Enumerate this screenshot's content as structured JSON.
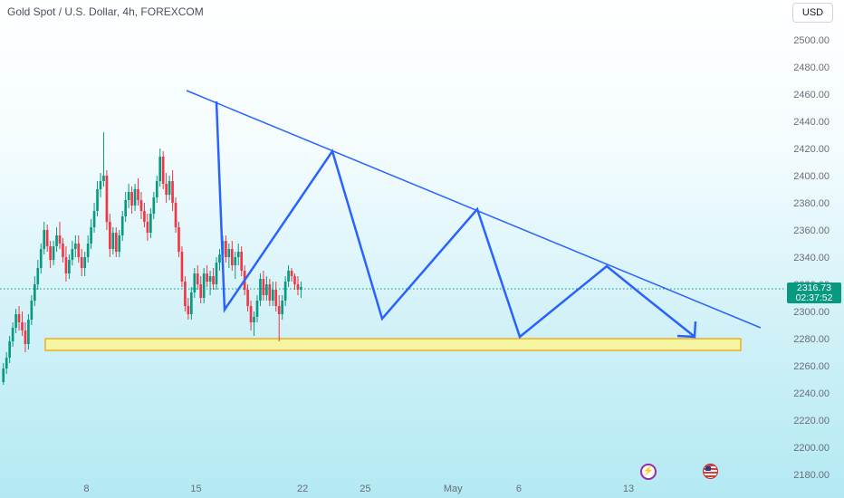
{
  "header": {
    "title": "Gold Spot / U.S. Dollar, 4h, FOREXCOM",
    "currency_button": "USD"
  },
  "price_tag": {
    "price": "2316.73",
    "countdown": "02:37:52"
  },
  "colors": {
    "up_candle": "#089981",
    "down_candle": "#f23645",
    "trendline": "#2962ff",
    "support_zone_fill": "#f3f5a3",
    "support_zone_border": "#f5a400"
  },
  "chart_data": {
    "type": "candlestick",
    "instrument": "Gold Spot / U.S. Dollar",
    "timeframe": "4h",
    "source": "FOREXCOM",
    "y_ticks": [
      2500,
      2480,
      2460,
      2440,
      2420,
      2400,
      2380,
      2360,
      2340,
      2320,
      2300,
      2280,
      2260,
      2240,
      2220,
      2200,
      2180
    ],
    "ylim": [
      2175,
      2510
    ],
    "x_ticks": [
      {
        "label": "8",
        "bar": 27
      },
      {
        "label": "15",
        "bar": 62
      },
      {
        "label": "22",
        "bar": 96
      },
      {
        "label": "25",
        "bar": 116
      },
      {
        "label": "May",
        "bar": 144
      },
      {
        "label": "6",
        "bar": 165
      },
      {
        "label": "13",
        "bar": 200
      }
    ],
    "last_price": 2316.73,
    "candles": [
      [
        2248,
        2262,
        2246,
        2258
      ],
      [
        2258,
        2270,
        2254,
        2266
      ],
      [
        2266,
        2282,
        2262,
        2278
      ],
      [
        2278,
        2292,
        2274,
        2288
      ],
      [
        2288,
        2302,
        2284,
        2298
      ],
      [
        2298,
        2304,
        2286,
        2292
      ],
      [
        2292,
        2300,
        2282,
        2286
      ],
      [
        2286,
        2292,
        2270,
        2276
      ],
      [
        2276,
        2298,
        2272,
        2294
      ],
      [
        2294,
        2312,
        2290,
        2308
      ],
      [
        2308,
        2326,
        2304,
        2320
      ],
      [
        2320,
        2338,
        2316,
        2332
      ],
      [
        2332,
        2350,
        2328,
        2346
      ],
      [
        2346,
        2366,
        2342,
        2360
      ],
      [
        2360,
        2364,
        2344,
        2348
      ],
      [
        2348,
        2352,
        2332,
        2338
      ],
      [
        2338,
        2352,
        2334,
        2348
      ],
      [
        2348,
        2362,
        2344,
        2356
      ],
      [
        2356,
        2366,
        2346,
        2350
      ],
      [
        2350,
        2354,
        2336,
        2340
      ],
      [
        2340,
        2348,
        2322,
        2328
      ],
      [
        2328,
        2342,
        2324,
        2338
      ],
      [
        2338,
        2352,
        2334,
        2346
      ],
      [
        2346,
        2356,
        2340,
        2350
      ],
      [
        2350,
        2356,
        2336,
        2340
      ],
      [
        2340,
        2346,
        2326,
        2332
      ],
      [
        2332,
        2344,
        2326,
        2340
      ],
      [
        2340,
        2356,
        2336,
        2350
      ],
      [
        2350,
        2368,
        2346,
        2362
      ],
      [
        2362,
        2380,
        2358,
        2374
      ],
      [
        2374,
        2396,
        2370,
        2390
      ],
      [
        2390,
        2402,
        2384,
        2396
      ],
      [
        2396,
        2432,
        2392,
        2400
      ],
      [
        2400,
        2404,
        2360,
        2366
      ],
      [
        2366,
        2372,
        2340,
        2346
      ],
      [
        2346,
        2362,
        2342,
        2358
      ],
      [
        2358,
        2362,
        2340,
        2344
      ],
      [
        2344,
        2360,
        2340,
        2356
      ],
      [
        2356,
        2374,
        2352,
        2370
      ],
      [
        2370,
        2388,
        2366,
        2382
      ],
      [
        2382,
        2394,
        2376,
        2388
      ],
      [
        2388,
        2392,
        2372,
        2378
      ],
      [
        2378,
        2394,
        2374,
        2390
      ],
      [
        2390,
        2398,
        2378,
        2382
      ],
      [
        2382,
        2388,
        2368,
        2374
      ],
      [
        2374,
        2380,
        2362,
        2366
      ],
      [
        2366,
        2372,
        2352,
        2358
      ],
      [
        2358,
        2376,
        2354,
        2372
      ],
      [
        2372,
        2388,
        2368,
        2384
      ],
      [
        2384,
        2400,
        2380,
        2396
      ],
      [
        2396,
        2420,
        2392,
        2414
      ],
      [
        2414,
        2418,
        2390,
        2394
      ],
      [
        2394,
        2402,
        2380,
        2386
      ],
      [
        2386,
        2400,
        2382,
        2396
      ],
      [
        2396,
        2404,
        2374,
        2380
      ],
      [
        2380,
        2384,
        2358,
        2362
      ],
      [
        2362,
        2366,
        2340,
        2344
      ],
      [
        2344,
        2348,
        2318,
        2322
      ],
      [
        2322,
        2326,
        2300,
        2304
      ],
      [
        2304,
        2310,
        2294,
        2298
      ],
      [
        2298,
        2318,
        2294,
        2314
      ],
      [
        2314,
        2332,
        2310,
        2328
      ],
      [
        2328,
        2334,
        2316,
        2320
      ],
      [
        2320,
        2326,
        2306,
        2310
      ],
      [
        2310,
        2332,
        2306,
        2328
      ],
      [
        2328,
        2334,
        2318,
        2322
      ],
      [
        2322,
        2330,
        2312,
        2326
      ],
      [
        2326,
        2332,
        2316,
        2320
      ],
      [
        2320,
        2340,
        2316,
        2336
      ],
      [
        2336,
        2346,
        2330,
        2342
      ],
      [
        2342,
        2356,
        2338,
        2352
      ],
      [
        2352,
        2356,
        2336,
        2340
      ],
      [
        2340,
        2350,
        2332,
        2346
      ],
      [
        2346,
        2352,
        2330,
        2334
      ],
      [
        2334,
        2344,
        2324,
        2340
      ],
      [
        2340,
        2350,
        2334,
        2344
      ],
      [
        2344,
        2348,
        2326,
        2330
      ],
      [
        2330,
        2334,
        2312,
        2316
      ],
      [
        2316,
        2320,
        2300,
        2304
      ],
      [
        2304,
        2308,
        2286,
        2292
      ],
      [
        2292,
        2300,
        2282,
        2296
      ],
      [
        2296,
        2312,
        2292,
        2308
      ],
      [
        2308,
        2328,
        2304,
        2324
      ],
      [
        2324,
        2330,
        2308,
        2312
      ],
      [
        2312,
        2326,
        2308,
        2320
      ],
      [
        2320,
        2324,
        2304,
        2308
      ],
      [
        2308,
        2322,
        2304,
        2316
      ],
      [
        2316,
        2322,
        2300,
        2304
      ],
      [
        2304,
        2312,
        2278,
        2298
      ],
      [
        2298,
        2312,
        2294,
        2308
      ],
      [
        2308,
        2326,
        2304,
        2322
      ],
      [
        2322,
        2334,
        2318,
        2330
      ],
      [
        2330,
        2332,
        2322,
        2326
      ],
      [
        2326,
        2328,
        2316,
        2320
      ],
      [
        2320,
        2326,
        2312,
        2316
      ],
      [
        2316,
        2322,
        2310,
        2318
      ]
    ]
  }
}
